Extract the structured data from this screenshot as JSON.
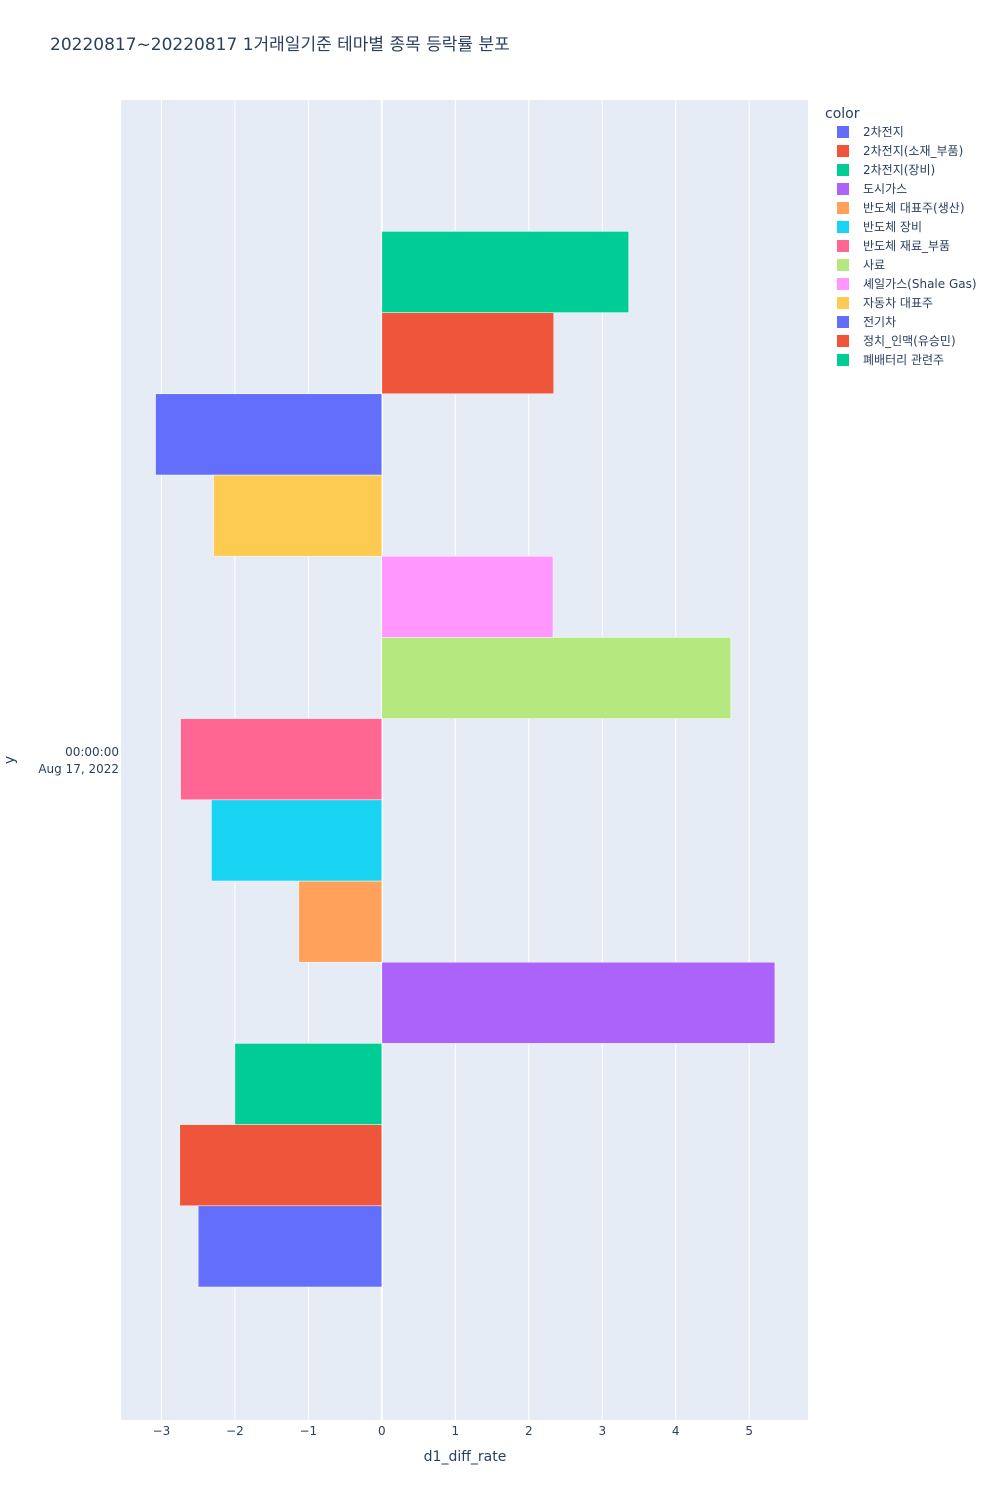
{
  "chart_data": {
    "type": "bar",
    "orientation": "horizontal",
    "title": "20220817~20220817 1거래일기준 테마별 종목 등락률 분포",
    "xlabel": "d1_diff_rate",
    "ylabel": "y",
    "y_category_lines": [
      "00:00:00",
      "Aug 17, 2022"
    ],
    "xlim": [
      -3.55,
      5.8
    ],
    "x_ticks": [
      "−3",
      "−2",
      "−1",
      "0",
      "1",
      "2",
      "3",
      "4",
      "5"
    ],
    "x_tick_values": [
      -3,
      -2,
      -1,
      0,
      1,
      2,
      3,
      4,
      5
    ],
    "grid": true,
    "legend_title": "color",
    "legend_position": "top-right",
    "series": [
      {
        "name": "2차전지",
        "value": -2.5,
        "color": "#636efa"
      },
      {
        "name": "2차전지(소재_부품)",
        "value": -2.75,
        "color": "#EF553B"
      },
      {
        "name": "2차전지(장비)",
        "value": -2.0,
        "color": "#00cc96"
      },
      {
        "name": "도시가스",
        "value": 5.35,
        "color": "#ab63fa"
      },
      {
        "name": "반도체 대표주(생산)",
        "value": -1.13,
        "color": "#FFA15A"
      },
      {
        "name": "반도체 장비",
        "value": -2.32,
        "color": "#19d3f3"
      },
      {
        "name": "반도체 재료_부품",
        "value": -2.74,
        "color": "#FF6692"
      },
      {
        "name": "사료",
        "value": 4.75,
        "color": "#B6E880"
      },
      {
        "name": "셰일가스(Shale Gas)",
        "value": 2.33,
        "color": "#FF97FF"
      },
      {
        "name": "자동차 대표주",
        "value": -2.29,
        "color": "#FECB52"
      },
      {
        "name": "전기차",
        "value": -3.08,
        "color": "#636efa"
      },
      {
        "name": "정치_인맥(유승민)",
        "value": 2.34,
        "color": "#EF553B"
      },
      {
        "name": "폐배터리 관련주",
        "value": 3.36,
        "color": "#00cc96"
      }
    ]
  }
}
